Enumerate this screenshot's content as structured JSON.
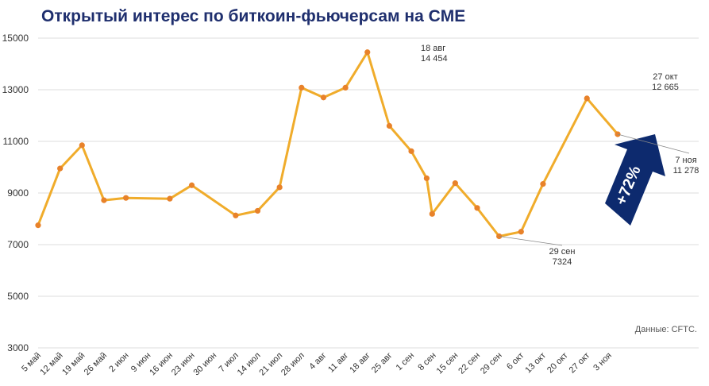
{
  "title": "Открытый интерес по биткоин-фьючерсам на CME",
  "source_note": "Данные: CFTC.",
  "arrow_label": "+72%",
  "colors": {
    "title": "#1f2f6e",
    "line": "#f0ac2b",
    "marker": "#e8822a",
    "arrow": "#0d2a6e",
    "grid": "#dddddd"
  },
  "chart_data": {
    "type": "line",
    "title": "Открытый интерес по биткоин-фьючерсам на CME",
    "xlabel": "",
    "ylabel": "",
    "ylim": [
      3000,
      15000
    ],
    "yticks": [
      3000,
      5000,
      7000,
      9000,
      11000,
      13000,
      15000
    ],
    "x_tick_labels": [
      "5 май",
      "12 май",
      "19 май",
      "26 май",
      "2 июн",
      "9 июн",
      "16 июн",
      "23 июн",
      "30 июн",
      "7 июл",
      "14 июл",
      "21 июл",
      "28 июл",
      "4 авг",
      "11 авг",
      "18 авг",
      "25 авг",
      "1 сен",
      "8 сен",
      "15 сен",
      "22 сен",
      "29 сен",
      "6 окт",
      "13 окт",
      "20 окт",
      "27 окт",
      "3 ноя"
    ],
    "grid": "horizontal",
    "series": [
      {
        "points": [
          {
            "x": 0.0,
            "y": 7750
          },
          {
            "x": 1.0,
            "y": 9950
          },
          {
            "x": 2.0,
            "y": 10850
          },
          {
            "x": 3.0,
            "y": 8720
          },
          {
            "x": 4.0,
            "y": 8810
          },
          {
            "x": 6.0,
            "y": 8780
          },
          {
            "x": 7.0,
            "y": 9300
          },
          {
            "x": 9.0,
            "y": 8130
          },
          {
            "x": 10.0,
            "y": 8310
          },
          {
            "x": 11.0,
            "y": 9220
          },
          {
            "x": 12.0,
            "y": 13080
          },
          {
            "x": 13.0,
            "y": 12700
          },
          {
            "x": 14.0,
            "y": 13080
          },
          {
            "x": 15.0,
            "y": 14454
          },
          {
            "x": 16.0,
            "y": 11600
          },
          {
            "x": 17.0,
            "y": 10620
          },
          {
            "x": 17.7,
            "y": 9570
          },
          {
            "x": 17.95,
            "y": 8190
          },
          {
            "x": 19.0,
            "y": 9380
          },
          {
            "x": 20.0,
            "y": 8420
          },
          {
            "x": 21.0,
            "y": 7324
          },
          {
            "x": 22.0,
            "y": 7500
          },
          {
            "x": 23.0,
            "y": 9350
          },
          {
            "x": 25.0,
            "y": 12665
          },
          {
            "x": 26.4,
            "y": 11278
          }
        ]
      }
    ],
    "annotations": [
      {
        "text_lines": [
          "18 авг",
          "14 454"
        ]
      },
      {
        "text_lines": [
          "29 сен",
          "7324"
        ]
      },
      {
        "text_lines": [
          "27 окт",
          "12 665"
        ]
      },
      {
        "text_lines": [
          "7 ноя",
          "11 278"
        ]
      }
    ]
  }
}
